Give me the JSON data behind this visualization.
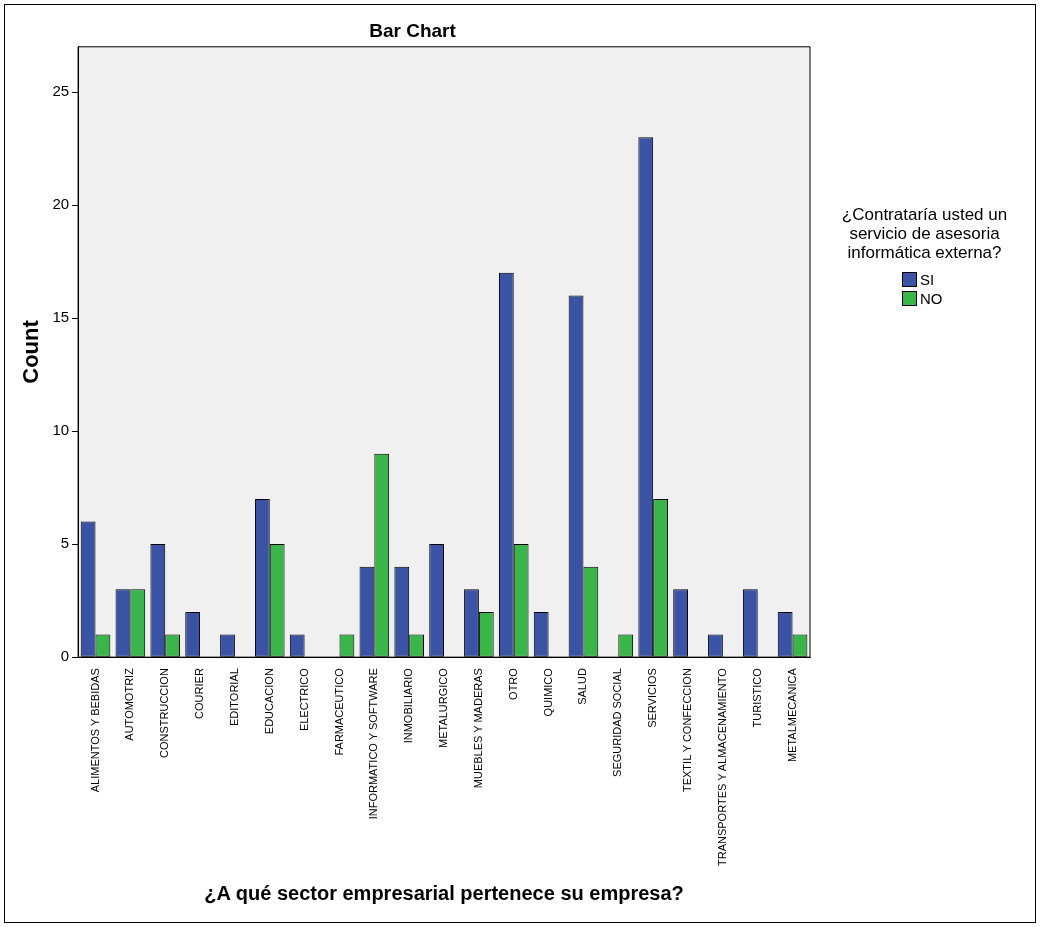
{
  "chart_data": {
    "type": "bar",
    "title": "Bar Chart",
    "xlabel": "¿A qué sector empresarial pertenece su empresa?",
    "ylabel": "Count",
    "legend_title": "¿Contrataría usted un servicio de asesoria informática externa?",
    "legend": "right",
    "categories": [
      "ALIMENTOS Y BEBIDAS",
      "AUTOMOTRIZ",
      "CONSTRUCCION",
      "COURIER",
      "EDITORIAL",
      "EDUCACION",
      "ELECTRICO",
      "FARMACEUTICO",
      "INFORMATICO Y SOFTWARE",
      "INMOBILIARIO",
      "METALURGICO",
      "MUEBLES Y MADERAS",
      "OTRO",
      "QUIMICO",
      "SALUD",
      "SEGURIDAD SOCIAL",
      "SERVICIOS",
      "TEXTIL Y CONFECCION",
      "TRANSPORTES Y ALMACENAMIENTO",
      "TURISTICO",
      "METALMECANICA"
    ],
    "series": [
      {
        "name": "SI",
        "color": "#3a53a4",
        "values": [
          6,
          3,
          5,
          2,
          1,
          7,
          1,
          null,
          4,
          4,
          5,
          3,
          17,
          2,
          16,
          null,
          23,
          3,
          1,
          3,
          2
        ]
      },
      {
        "name": "NO",
        "color": "#3ab54a",
        "values": [
          1,
          3,
          1,
          null,
          null,
          5,
          null,
          1,
          9,
          1,
          null,
          2,
          5,
          null,
          4,
          1,
          7,
          null,
          null,
          null,
          1
        ]
      }
    ],
    "ylim": [
      0,
      27
    ],
    "yticks": [
      0,
      5,
      10,
      15,
      20,
      25
    ],
    "grid": false
  }
}
